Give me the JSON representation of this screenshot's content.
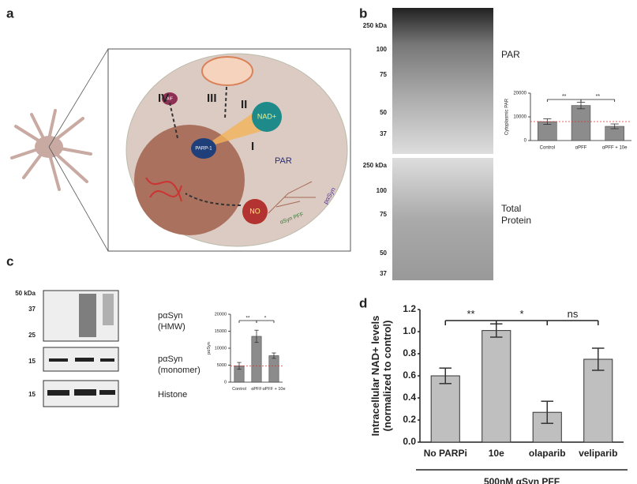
{
  "panel_labels": [
    "a",
    "b",
    "c",
    "d"
  ],
  "diagram": {
    "iv": "IV",
    "iii": "III",
    "ii": "II",
    "nad": "NAD+",
    "i": "I",
    "par": "PAR",
    "parp": "PARP-1",
    "aif": "AIF",
    "no": "NO",
    "psyn": "pαSyn",
    "pff": "αSyn PFF"
  },
  "blots": {
    "par": {
      "markers": [
        "250 kDa",
        "100",
        "75",
        "50",
        "37"
      ],
      "label": [
        "PAR"
      ]
    },
    "total": {
      "markers": [
        "250 kDa",
        "100",
        "75",
        "50",
        "37"
      ],
      "label": [
        "Total",
        "Protein"
      ]
    },
    "hmw": {
      "markers": [
        "50 kDa",
        "37",
        "25"
      ],
      "label": [
        "pαSyn",
        "(HMW)"
      ]
    },
    "monomer": {
      "markers": [
        "15"
      ],
      "label": [
        "pαSyn",
        "(monomer)"
      ]
    },
    "histone": {
      "markers": [
        "15"
      ],
      "label": [
        "Histone"
      ]
    }
  },
  "chart_data": [
    {
      "type": "bar",
      "ylabel": [
        "Cytoplasmic PAR"
      ],
      "categories": [
        "Control",
        "αPFF",
        "αPFF + 10e"
      ],
      "values": [
        8000,
        14800,
        6000
      ],
      "errors": [
        1200,
        1400,
        1000
      ],
      "annotations": [
        "**",
        "**"
      ],
      "ylim": [
        0,
        20000
      ],
      "yticks": [
        0,
        10000,
        20000
      ],
      "color": "#8c8c8c",
      "ref_line": true
    },
    {
      "type": "bar",
      "ylabel": [
        "pαSyn"
      ],
      "categories": [
        "Control",
        "αPFF",
        "αPFF + 10e"
      ],
      "values": [
        4800,
        13500,
        7800
      ],
      "errors": [
        1000,
        1800,
        800
      ],
      "annotations": [
        "**",
        "*"
      ],
      "ylim": [
        0,
        20000
      ],
      "yticks": [
        0,
        5000,
        10000,
        15000,
        20000
      ],
      "color": "#8c8c8c",
      "ref_line": true
    },
    {
      "type": "bar",
      "ylabel": [
        "Intracellular NAD+ levels",
        "(normalized to control)"
      ],
      "xlabel": "500nM αSyn PFF",
      "categories": [
        "No PARPi",
        "10e",
        "olaparib",
        "veliparib"
      ],
      "values": [
        0.6,
        1.01,
        0.27,
        0.75
      ],
      "errors": [
        0.07,
        0.06,
        0.1,
        0.1
      ],
      "annotations": [
        "**",
        "*",
        "ns"
      ],
      "ylim": [
        0,
        1.2
      ],
      "yticks": [
        {
          "value": 0,
          "label": "0.0"
        },
        0.2,
        0.4,
        0.6,
        0.8,
        {
          "value": 1,
          "label": "1.0"
        },
        1.2
      ],
      "color": "#bfbfbf",
      "ref_line": false
    }
  ]
}
